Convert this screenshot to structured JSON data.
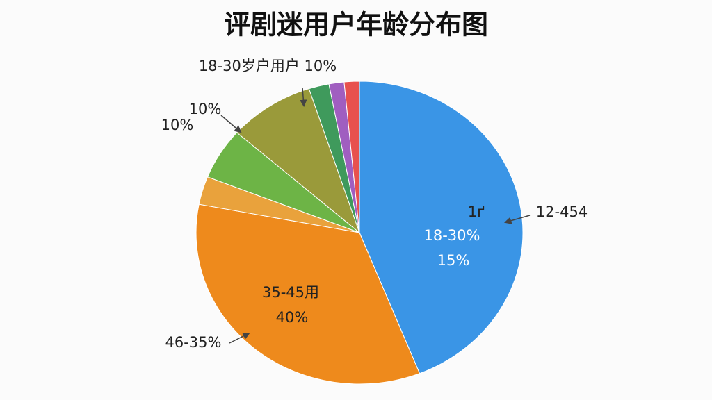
{
  "chart_data": {
    "type": "pie",
    "title": "评剧迷用户年龄分布图",
    "values": [
      44,
      34,
      3,
      5.5,
      8.5,
      2,
      1.5,
      1.5
    ],
    "colors": [
      "#3a95e6",
      "#ee8a1c",
      "#e9a23c",
      "#6db446",
      "#9a9a3a",
      "#3f9a5c",
      "#a05ec0",
      "#e8514e"
    ],
    "annotations": [
      "18-30岁户用户 10%",
      "10%",
      "10%",
      "1ґ",
      "12-454",
      "18-30%",
      "15%",
      "35-45用",
      "40%",
      "46-35%"
    ]
  }
}
